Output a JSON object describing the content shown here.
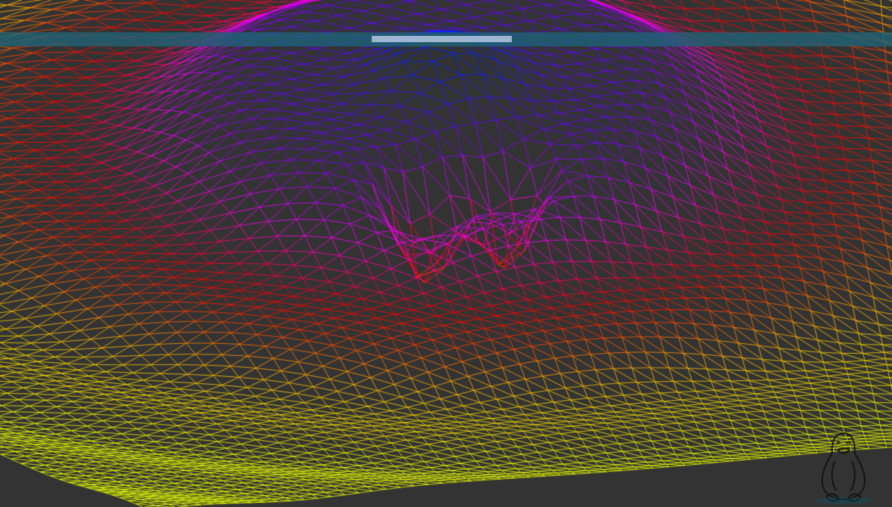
{
  "scene": {
    "background_color": "#333333",
    "render_mode": "wireframe",
    "colormap": [
      "#e5ff00",
      "#ffb000",
      "#ff0000",
      "#ff00ff",
      "#8000ff",
      "#0020ff",
      "#00b0ff",
      "#5fe000"
    ],
    "icons": {
      "logo": "tux-penguin-icon"
    }
  },
  "top_bar": {
    "color": "#1c6478"
  }
}
